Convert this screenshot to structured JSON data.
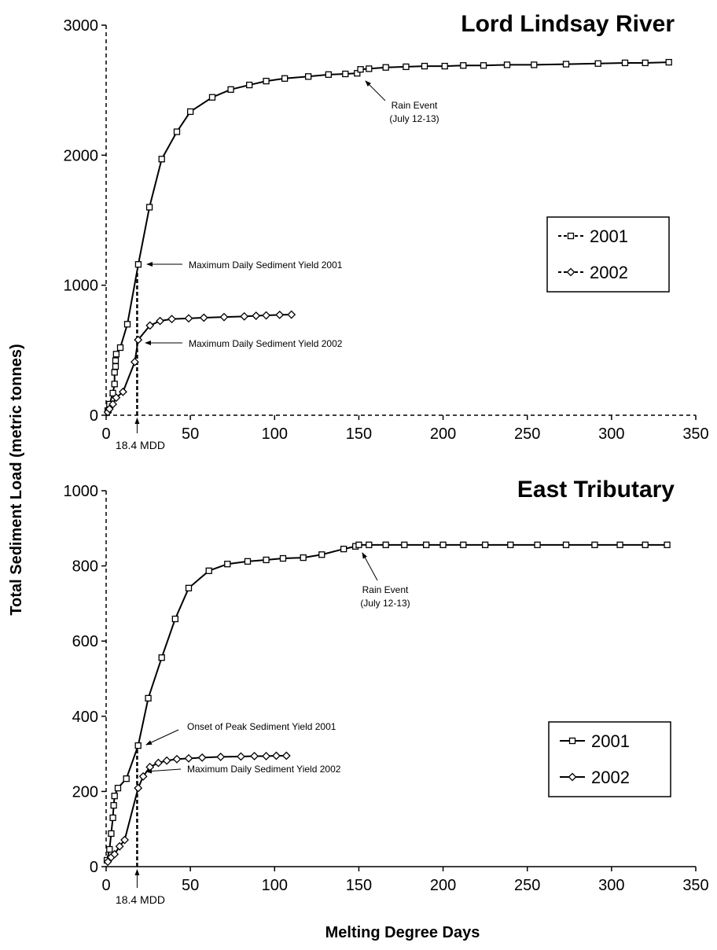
{
  "chart_data": [
    {
      "type": "line",
      "title": "Lord Lindsay River",
      "ylabel": "Total Sediment Load (metric tonnes)",
      "xlim": [
        0,
        350
      ],
      "xticks": [
        0,
        50,
        100,
        150,
        200,
        250,
        300,
        350
      ],
      "ylim": [
        0,
        3000
      ],
      "yticks": [
        0,
        1000,
        2000,
        3000
      ],
      "vline": 18.4,
      "vline_label": "18.4 MDD",
      "annotations": [
        "Rain Event",
        "(July 12-13)",
        "Maximum Daily Sediment Yield 2001",
        "Maximum Daily Sediment Yield 2002"
      ],
      "series": [
        {
          "name": "2001",
          "color": "#000000",
          "marker": "square",
          "x": [
            1,
            2,
            4,
            5,
            5,
            5.6,
            5.6,
            6,
            8.4,
            12.6,
            19.1,
            25.7,
            33,
            42,
            50,
            63,
            74,
            85,
            95,
            106,
            120,
            132,
            142,
            149,
            151,
            156,
            166,
            178,
            189,
            201,
            212,
            224,
            238,
            254,
            273,
            292,
            308,
            320,
            334
          ],
          "values": [
            36,
            85,
            170,
            240,
            330,
            375,
            420,
            470,
            520,
            700,
            1160,
            1600,
            1970,
            2180,
            2335,
            2445,
            2505,
            2540,
            2570,
            2590,
            2605,
            2620,
            2625,
            2630,
            2660,
            2665,
            2675,
            2680,
            2685,
            2685,
            2690,
            2690,
            2695,
            2695,
            2700,
            2705,
            2710,
            2710,
            2715
          ]
        },
        {
          "name": "2002",
          "color": "#000000",
          "marker": "diamond",
          "x": [
            1,
            2,
            4,
            6,
            10,
            17,
            19,
            26,
            32,
            39,
            49,
            58,
            70,
            82,
            89,
            95,
            103,
            110
          ],
          "values": [
            24,
            48,
            85,
            135,
            180,
            410,
            580,
            690,
            725,
            740,
            745,
            750,
            755,
            760,
            765,
            768,
            772,
            774
          ]
        }
      ]
    },
    {
      "type": "line",
      "title": "East Tributary",
      "xlabel": "Melting Degree Days",
      "xlim": [
        0,
        350
      ],
      "xticks": [
        0,
        50,
        100,
        150,
        200,
        250,
        300,
        350
      ],
      "ylim": [
        0,
        1000
      ],
      "yticks": [
        0,
        200,
        400,
        600,
        800,
        1000
      ],
      "vline": 18.4,
      "vline_label": "18.4 MDD",
      "annotations": [
        "Rain Event",
        "(July 12-13)",
        "Onset of Peak Sediment Yield 2001",
        "Maximum Daily Sediment Yield 2002"
      ],
      "series": [
        {
          "name": "2001",
          "color": "#000000",
          "marker": "square",
          "x": [
            0.5,
            2,
            3,
            4,
            4.5,
            5,
            7,
            12,
            19,
            25,
            33,
            41,
            49,
            61,
            72,
            84,
            95,
            105,
            117,
            128,
            141,
            148,
            150,
            156,
            166,
            177,
            190,
            200,
            212,
            225,
            240,
            256,
            273,
            290,
            305,
            320,
            333
          ],
          "values": [
            17,
            46,
            88,
            130,
            163,
            188,
            209,
            234,
            322,
            448,
            556,
            659,
            741,
            787,
            805,
            812,
            816,
            820,
            822,
            830,
            845,
            852,
            856,
            856,
            856,
            856,
            856,
            856,
            856,
            856,
            856,
            856,
            856,
            856,
            856,
            856,
            856
          ]
        },
        {
          "name": "2002",
          "color": "#000000",
          "marker": "diamond",
          "x": [
            1,
            3,
            5,
            8,
            11,
            19,
            22,
            26,
            31,
            36,
            42,
            49,
            57,
            68,
            80,
            88,
            95,
            101,
            107
          ],
          "values": [
            13,
            25,
            33,
            54,
            71,
            209,
            240,
            265,
            276,
            282,
            286,
            288,
            290,
            292,
            293,
            294,
            294,
            295,
            295
          ]
        }
      ]
    }
  ]
}
